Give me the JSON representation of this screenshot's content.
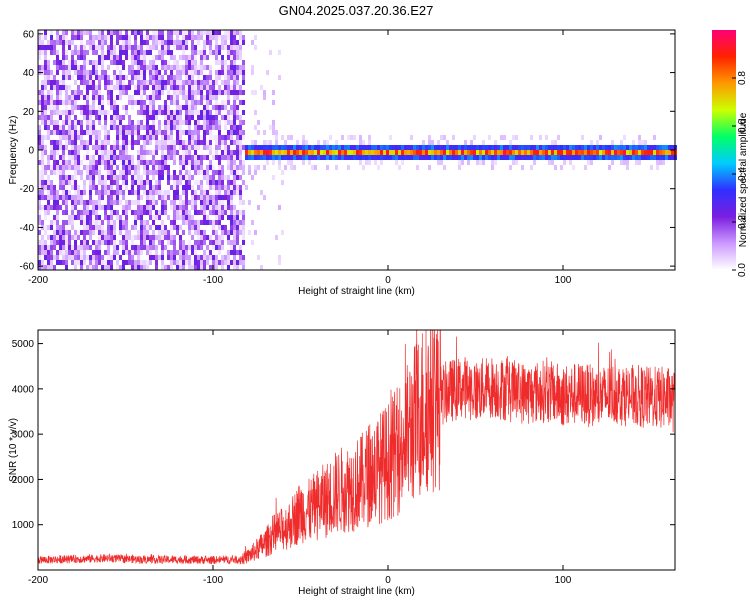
{
  "figure": {
    "title": "GN04.2025.037.20.36.E27"
  },
  "chart_data": [
    {
      "type": "heatmap",
      "xlabel": "Height of straight line (km)",
      "ylabel": "Frequency (Hz)",
      "xlim": [
        -200,
        164
      ],
      "ylim": [
        -62,
        62
      ],
      "xticks": [
        -200,
        -100,
        0,
        100
      ],
      "yticks": [
        60,
        40,
        20,
        0,
        -20,
        -40,
        -60
      ],
      "colorbar": {
        "label": "Normalized spectral amplitude",
        "range": [
          0,
          1
        ],
        "ticks": [
          0.0,
          0.2,
          0.4,
          0.6,
          0.8
        ],
        "tick_labels": [
          "0.0",
          "0.2",
          "0.4",
          "0.6",
          "0.8"
        ],
        "colors": [
          "#ffffff",
          "#cc99ff",
          "#7a1fe0",
          "#3030ff",
          "#00ccff",
          "#00ff66",
          "#ccff00",
          "#ff9900",
          "#ff2200",
          "#ff0077"
        ]
      },
      "regions": [
        {
          "x_range": [
            -200,
            -83
          ],
          "freq_range": [
            -62,
            62
          ],
          "amplitude": "0.05–0.25, broadband speckle"
        },
        {
          "x_range": [
            -83,
            -60
          ],
          "freq_range": [
            -62,
            62
          ],
          "amplitude": "0.0–0.1, sparse"
        },
        {
          "x_range": [
            -83,
            164
          ],
          "center_freq": 0,
          "half_width_hz": 4,
          "peak_amplitude": 0.9
        }
      ]
    },
    {
      "type": "line",
      "xlabel": "Height of straight line (km)",
      "ylabel": "SNR (10 * v/v)",
      "xlim": [
        -200,
        164
      ],
      "ylim": [
        0,
        5300
      ],
      "xticks": [
        -200,
        -100,
        0,
        100
      ],
      "yticks": [
        1000,
        2000,
        3000,
        4000,
        5000
      ],
      "color": "#ef2b2b",
      "series": [
        {
          "x": [
            -200,
            -180,
            -160,
            -140,
            -120,
            -100,
            -85,
            -80,
            -75,
            -70,
            -65,
            -60,
            -55,
            -50,
            -45,
            -40,
            -35,
            -30,
            -25,
            -20,
            -15,
            -10,
            -5,
            0,
            5,
            10,
            15,
            20,
            25,
            30,
            35,
            40,
            45,
            50,
            55,
            60,
            70,
            80,
            90,
            100,
            110,
            120,
            130,
            140,
            150,
            160,
            164
          ],
          "y": [
            220,
            240,
            260,
            230,
            230,
            220,
            230,
            300,
            450,
            600,
            800,
            900,
            1050,
            1300,
            1300,
            1450,
            1550,
            1700,
            1800,
            1850,
            1950,
            2150,
            2250,
            2400,
            2600,
            2900,
            3250,
            3550,
            3750,
            3850,
            3950,
            4000,
            4050,
            3950,
            4000,
            4050,
            3950,
            3900,
            3950,
            3850,
            3900,
            3800,
            3900,
            3850,
            3800,
            3800,
            3700
          ]
        }
      ]
    }
  ]
}
